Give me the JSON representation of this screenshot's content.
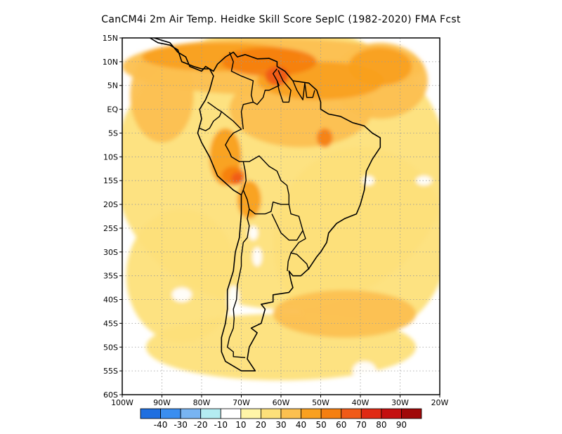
{
  "title": "CanCM4i  2m Air Temp. Heidke Skill Score SepIC (1982-2020) FMA Fcst",
  "map": {
    "lon_range": [
      -100,
      -20
    ],
    "lat_range": [
      -60,
      15
    ],
    "grid": true,
    "lat_ticks": [
      {
        "value": 15,
        "label": "15N"
      },
      {
        "value": 10,
        "label": "10N"
      },
      {
        "value": 5,
        "label": "5N"
      },
      {
        "value": 0,
        "label": "EQ"
      },
      {
        "value": -5,
        "label": "5S"
      },
      {
        "value": -10,
        "label": "10S"
      },
      {
        "value": -15,
        "label": "15S"
      },
      {
        "value": -20,
        "label": "20S"
      },
      {
        "value": -25,
        "label": "25S"
      },
      {
        "value": -30,
        "label": "30S"
      },
      {
        "value": -35,
        "label": "35S"
      },
      {
        "value": -40,
        "label": "40S"
      },
      {
        "value": -45,
        "label": "45S"
      },
      {
        "value": -50,
        "label": "50S"
      },
      {
        "value": -55,
        "label": "55S"
      },
      {
        "value": -60,
        "label": "60S"
      }
    ],
    "lon_ticks": [
      {
        "value": -100,
        "label": "100W"
      },
      {
        "value": -90,
        "label": "90W"
      },
      {
        "value": -80,
        "label": "80W"
      },
      {
        "value": -70,
        "label": "70W"
      },
      {
        "value": -60,
        "label": "60W"
      },
      {
        "value": -50,
        "label": "50W"
      },
      {
        "value": -40,
        "label": "40W"
      },
      {
        "value": -30,
        "label": "30W"
      },
      {
        "value": -20,
        "label": "20W"
      }
    ]
  },
  "colorbar": {
    "colors": [
      "#1f6fe0",
      "#3a8ef0",
      "#78b4f2",
      "#b4ecf2",
      "#ffffff",
      "#fff5a8",
      "#fde07a",
      "#fcc050",
      "#f9a020",
      "#f57f10",
      "#f05a18",
      "#e02a14",
      "#c41010",
      "#a00808"
    ],
    "labels": [
      "-40",
      "-30",
      "-20",
      "-10",
      "10",
      "20",
      "30",
      "40",
      "50",
      "60",
      "70",
      "80",
      "90"
    ]
  },
  "skill_regions": [
    {
      "level": 20,
      "lon": -60,
      "lat": -12,
      "r_lon": 42,
      "r_lat": 30
    },
    {
      "level": 20,
      "lon": -40,
      "lat": -28,
      "r_lon": 22,
      "r_lat": 20
    },
    {
      "level": 20,
      "lon": -85,
      "lat": -35,
      "r_lon": 14,
      "r_lat": 14
    },
    {
      "level": 20,
      "lon": -60,
      "lat": -50,
      "r_lon": 34,
      "r_lat": 7
    },
    {
      "level": 30,
      "lon": -62,
      "lat": 9,
      "r_lon": 38,
      "r_lat": 6
    },
    {
      "level": 30,
      "lon": -55,
      "lat": 0,
      "r_lon": 18,
      "r_lat": 8
    },
    {
      "level": 30,
      "lon": -35,
      "lat": 6,
      "r_lon": 12,
      "r_lat": 8
    },
    {
      "level": 30,
      "lon": -44,
      "lat": -43,
      "r_lon": 18,
      "r_lat": 5
    },
    {
      "level": 30,
      "lon": -90,
      "lat": 3,
      "r_lon": 8,
      "r_lat": 10
    },
    {
      "level": 40,
      "lon": -75,
      "lat": 11,
      "r_lon": 20,
      "r_lat": 3
    },
    {
      "level": 40,
      "lon": -50,
      "lat": 6,
      "r_lon": 16,
      "r_lat": 4
    },
    {
      "level": 40,
      "lon": -35,
      "lat": 9,
      "r_lon": 8,
      "r_lat": 4
    },
    {
      "level": 40,
      "lon": -74,
      "lat": -10,
      "r_lon": 4,
      "r_lat": 6
    },
    {
      "level": 40,
      "lon": -68,
      "lat": -19,
      "r_lon": 3,
      "r_lat": 4
    },
    {
      "level": 50,
      "lon": -63,
      "lat": 10,
      "r_lon": 12,
      "r_lat": 3
    },
    {
      "level": 50,
      "lon": -72,
      "lat": -14,
      "r_lon": 3,
      "r_lat": 2
    },
    {
      "level": 50,
      "lon": -49,
      "lat": -6,
      "r_lon": 2,
      "r_lat": 2
    },
    {
      "level": 60,
      "lon": -61,
      "lat": 7,
      "r_lon": 3,
      "r_lat": 2
    },
    {
      "level": 60,
      "lon": -71,
      "lat": -14.5,
      "r_lon": 1.5,
      "r_lat": 1.2
    },
    {
      "level": -10,
      "lon": -85,
      "lat": -39,
      "r_lon": 2.5,
      "r_lat": 1.5
    },
    {
      "level": -10,
      "lon": -72,
      "lat": -40,
      "r_lon": 1.5,
      "r_lat": 3
    },
    {
      "level": -10,
      "lon": -66,
      "lat": -31,
      "r_lon": 1.2,
      "r_lat": 2
    },
    {
      "level": -10,
      "lon": -67,
      "lat": -26,
      "r_lon": 1.2,
      "r_lat": 1.5
    },
    {
      "level": -10,
      "lon": -39,
      "lat": -55,
      "r_lon": 3,
      "r_lat": 2
    },
    {
      "level": -10,
      "lon": -32,
      "lat": -58,
      "r_lon": 3,
      "r_lat": 1.5
    },
    {
      "level": -10,
      "lon": -38,
      "lat": -15,
      "r_lon": 1.5,
      "r_lat": 1
    },
    {
      "level": -10,
      "lon": -24,
      "lat": -15,
      "r_lon": 2,
      "r_lat": 1
    }
  ],
  "coastlines": [
    [
      [
        -97,
        15
      ],
      [
        -95,
        16
      ],
      [
        -92,
        15
      ],
      [
        -88,
        14
      ],
      [
        -86,
        12
      ],
      [
        -84,
        11
      ],
      [
        -83,
        9
      ],
      [
        -80,
        8
      ],
      [
        -79,
        9
      ],
      [
        -77,
        8
      ],
      [
        -76,
        9.5
      ],
      [
        -74,
        11
      ],
      [
        -72,
        12
      ],
      [
        -71,
        11
      ],
      [
        -69,
        11.5
      ],
      [
        -66,
        10.6
      ],
      [
        -63,
        10.7
      ],
      [
        -61,
        10
      ],
      [
        -61,
        9
      ],
      [
        -59,
        8
      ],
      [
        -57,
        6
      ],
      [
        -53,
        5.5
      ],
      [
        -51,
        4
      ],
      [
        -50,
        1.5
      ],
      [
        -50,
        0
      ],
      [
        -48,
        -1
      ],
      [
        -45,
        -1.5
      ],
      [
        -42,
        -2.8
      ],
      [
        -39,
        -3.5
      ],
      [
        -37,
        -5
      ],
      [
        -35,
        -6
      ],
      [
        -35,
        -8
      ],
      [
        -37,
        -10.5
      ],
      [
        -38.5,
        -13
      ],
      [
        -39,
        -17
      ],
      [
        -40,
        -20
      ],
      [
        -41,
        -22
      ],
      [
        -44,
        -23
      ],
      [
        -46,
        -24
      ],
      [
        -48,
        -26
      ],
      [
        -48.5,
        -28
      ],
      [
        -50,
        -30
      ],
      [
        -51,
        -31
      ],
      [
        -53,
        -33.5
      ],
      [
        -55,
        -35
      ],
      [
        -57,
        -35
      ],
      [
        -58,
        -34
      ],
      [
        -57.5,
        -36
      ],
      [
        -57,
        -37.5
      ],
      [
        -58,
        -38.5
      ],
      [
        -62,
        -39
      ],
      [
        -62,
        -40.5
      ],
      [
        -65,
        -41
      ],
      [
        -64,
        -42
      ],
      [
        -65,
        -45
      ],
      [
        -67.5,
        -46
      ],
      [
        -66,
        -47
      ],
      [
        -68,
        -50
      ],
      [
        -68.5,
        -52.5
      ],
      [
        -66.5,
        -55
      ],
      [
        -70,
        -55
      ],
      [
        -74,
        -53
      ],
      [
        -75,
        -51
      ],
      [
        -75,
        -48
      ],
      [
        -74,
        -45
      ],
      [
        -73.5,
        -42
      ],
      [
        -73.5,
        -38
      ],
      [
        -72,
        -34
      ],
      [
        -71.5,
        -30
      ],
      [
        -70.5,
        -27
      ],
      [
        -70,
        -22
      ],
      [
        -70,
        -18
      ],
      [
        -72,
        -17
      ],
      [
        -76,
        -14
      ],
      [
        -78,
        -10
      ],
      [
        -80,
        -7
      ],
      [
        -81,
        -5
      ],
      [
        -80,
        -2
      ],
      [
        -80.5,
        0
      ],
      [
        -79,
        2
      ],
      [
        -78,
        4
      ],
      [
        -77,
        7
      ],
      [
        -78,
        8.5
      ],
      [
        -80,
        8.5
      ],
      [
        -82,
        9
      ],
      [
        -85,
        10
      ],
      [
        -86,
        12.5
      ],
      [
        -88,
        13.5
      ],
      [
        -91,
        14
      ],
      [
        -94,
        15.5
      ],
      [
        -97,
        15.5
      ]
    ]
  ],
  "borders": [
    [
      [
        -73,
        12
      ],
      [
        -72,
        10
      ],
      [
        -72.5,
        8
      ],
      [
        -70,
        7
      ],
      [
        -67,
        6
      ],
      [
        -67.5,
        3
      ],
      [
        -67,
        1.5
      ],
      [
        -69.5,
        1
      ],
      [
        -70,
        -0.5
      ],
      [
        -69.5,
        -4.2
      ]
    ],
    [
      [
        -61,
        8.5
      ],
      [
        -62,
        7.5
      ],
      [
        -61,
        6
      ],
      [
        -60.5,
        5
      ],
      [
        -63,
        4
      ],
      [
        -64,
        4
      ],
      [
        -64.5,
        2.5
      ],
      [
        -66,
        1
      ],
      [
        -67,
        1.5
      ]
    ],
    [
      [
        -60.7,
        8.2
      ],
      [
        -59.5,
        6
      ],
      [
        -57.5,
        4
      ],
      [
        -58,
        1.5
      ],
      [
        -59.5,
        1.5
      ],
      [
        -60.5,
        4
      ],
      [
        -61,
        6
      ]
    ],
    [
      [
        -57,
        6
      ],
      [
        -56,
        4
      ],
      [
        -54.5,
        2
      ],
      [
        -54,
        5.5
      ]
    ],
    [
      [
        -54,
        5.5
      ],
      [
        -53.5,
        2.5
      ],
      [
        -52,
        2.5
      ],
      [
        -51.5,
        4
      ]
    ],
    [
      [
        -78.5,
        1.5
      ],
      [
        -76,
        0
      ],
      [
        -75,
        -0.5
      ],
      [
        -75.5,
        -1.5
      ],
      [
        -77,
        -2.5
      ],
      [
        -78,
        -4
      ],
      [
        -79,
        -4.5
      ],
      [
        -80.5,
        -4
      ]
    ],
    [
      [
        -75,
        -0.5
      ],
      [
        -73.5,
        -1.5
      ],
      [
        -72,
        -2.5
      ],
      [
        -70,
        -4.2
      ],
      [
        -72,
        -5
      ],
      [
        -73,
        -6
      ],
      [
        -74,
        -7.5
      ],
      [
        -73,
        -9
      ],
      [
        -72.5,
        -10
      ],
      [
        -70.5,
        -11
      ],
      [
        -69.5,
        -11
      ],
      [
        -69,
        -13
      ],
      [
        -68.8,
        -15
      ],
      [
        -69.5,
        -17
      ],
      [
        -70,
        -18
      ]
    ],
    [
      [
        -69.5,
        -11
      ],
      [
        -68,
        -11
      ],
      [
        -65.5,
        -9.8
      ],
      [
        -63,
        -12
      ],
      [
        -61,
        -13
      ],
      [
        -60,
        -15
      ],
      [
        -58.5,
        -16
      ],
      [
        -58,
        -18
      ],
      [
        -58,
        -20
      ],
      [
        -60,
        -20
      ],
      [
        -62,
        -19.5
      ],
      [
        -62.5,
        -21.5
      ],
      [
        -64,
        -22
      ],
      [
        -66.5,
        -22
      ],
      [
        -68,
        -21
      ],
      [
        -68.5,
        -19
      ],
      [
        -69.5,
        -17
      ]
    ],
    [
      [
        -58,
        -20
      ],
      [
        -57.5,
        -22
      ],
      [
        -55.5,
        -22.5
      ],
      [
        -54.5,
        -25.5
      ],
      [
        -56,
        -27.5
      ],
      [
        -58,
        -27.5
      ],
      [
        -60,
        -26
      ],
      [
        -62.3,
        -22
      ]
    ],
    [
      [
        -54.5,
        -25.5
      ],
      [
        -53.8,
        -27.2
      ],
      [
        -55.5,
        -28
      ],
      [
        -57.5,
        -30.2
      ],
      [
        -56,
        -30.5
      ],
      [
        -53.5,
        -32.5
      ],
      [
        -53,
        -33.7
      ]
    ],
    [
      [
        -57.5,
        -30.2
      ],
      [
        -58.2,
        -32
      ],
      [
        -58.4,
        -34
      ]
    ],
    [
      [
        -68,
        -21
      ],
      [
        -68.5,
        -23
      ],
      [
        -68,
        -24.5
      ],
      [
        -68.5,
        -27
      ],
      [
        -69.5,
        -28
      ],
      [
        -70,
        -31
      ],
      [
        -70,
        -33
      ],
      [
        -70.5,
        -35
      ],
      [
        -71,
        -37
      ],
      [
        -71.2,
        -40
      ],
      [
        -72,
        -42
      ],
      [
        -71.8,
        -44
      ],
      [
        -72,
        -46
      ],
      [
        -73,
        -48
      ],
      [
        -73.5,
        -50
      ],
      [
        -72,
        -51
      ],
      [
        -72,
        -52
      ],
      [
        -69,
        -52.2
      ]
    ]
  ]
}
